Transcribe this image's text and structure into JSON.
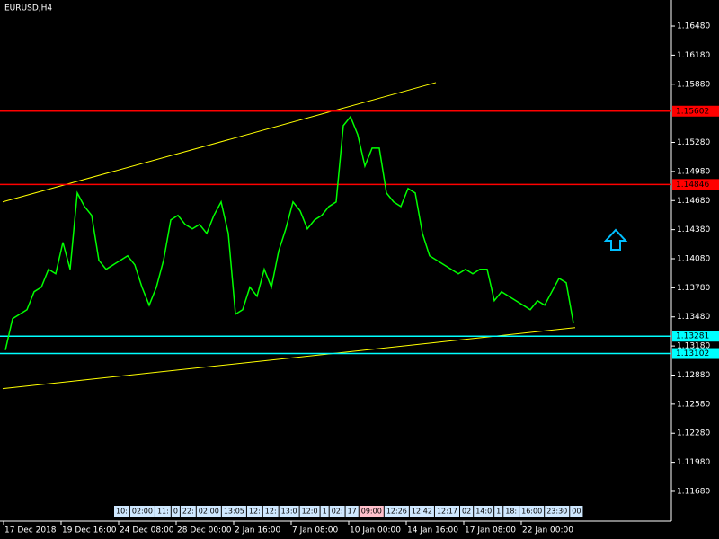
{
  "chart_data": {
    "type": "line",
    "title": "EURUSD,H4",
    "color": "#00ff00",
    "values": [
      1.13138,
      1.13462,
      1.13508,
      1.13554,
      1.1374,
      1.13786,
      1.13971,
      1.13925,
      1.14249,
      1.13971,
      1.14758,
      1.14619,
      1.14527,
      1.14064,
      1.13971,
      1.14017,
      1.14064,
      1.1411,
      1.14017,
      1.13786,
      1.13601,
      1.13786,
      1.14064,
      1.1448,
      1.14527,
      1.14434,
      1.14388,
      1.14434,
      1.14341,
      1.14527,
      1.14666,
      1.14341,
      1.13508,
      1.13554,
      1.13786,
      1.13693,
      1.13971,
      1.13786,
      1.14156,
      1.14388,
      1.14666,
      1.14573,
      1.14388,
      1.1448,
      1.14527,
      1.14619,
      1.14666,
      1.15453,
      1.15545,
      1.1536,
      1.15036,
      1.15221,
      1.15221,
      1.14758,
      1.14666,
      1.14619,
      1.14804,
      1.14758,
      1.14341,
      1.1411,
      1.14064,
      1.14017,
      1.13971,
      1.13925,
      1.13971,
      1.13925,
      1.13971,
      1.13971,
      1.13647,
      1.1374,
      1.13693,
      1.13647,
      1.13601,
      1.13554,
      1.13647,
      1.13601,
      1.1374,
      1.13878,
      1.13832,
      1.13415
    ],
    "x_labels": [
      "17 Dec 2018",
      "19 Dec 16:00",
      "24 Dec 08:00",
      "28 Dec 00:00",
      "2 Jan 16:00",
      "7 Jan 08:00",
      "10 Jan 00:00",
      "14 Jan 16:00",
      "17 Jan 08:00",
      "22 Jan 00:00"
    ],
    "ylim": [
      1.11374,
      1.16749
    ],
    "yticks": [
      {
        "value": 1.1648,
        "label": "1.16480"
      },
      {
        "value": 1.1618,
        "label": "1.16180"
      },
      {
        "value": 1.1588,
        "label": "1.15880"
      },
      {
        "value": 1.1528,
        "label": "1.15280"
      },
      {
        "value": 1.1498,
        "label": "1.14980"
      },
      {
        "value": 1.1468,
        "label": "1.14680"
      },
      {
        "value": 1.1438,
        "label": "1.14380"
      },
      {
        "value": 1.1408,
        "label": "1.14080"
      },
      {
        "value": 1.1378,
        "label": "1.13780"
      },
      {
        "value": 1.1348,
        "label": "1.13480"
      },
      {
        "value": 1.1318,
        "label": "1.13180"
      },
      {
        "value": 1.1288,
        "label": "1.12880"
      },
      {
        "value": 1.1258,
        "label": "1.12580"
      },
      {
        "value": 1.1228,
        "label": "1.12280"
      },
      {
        "value": 1.1198,
        "label": "1.11980"
      },
      {
        "value": 1.1168,
        "label": "1.11680"
      }
    ],
    "levels": [
      {
        "value": 1.15602,
        "color": "#ff0000"
      },
      {
        "value": 1.14846,
        "color": "#ff0000"
      },
      {
        "value": 1.13281,
        "color": "#00ffff"
      },
      {
        "value": 1.13102,
        "color": "#00ffff"
      }
    ],
    "trendlines": [
      {
        "from": 1.14666,
        "to": 1.15897,
        "color": "#ffff00"
      },
      {
        "from": 1.1274,
        "to": 1.13369,
        "color": "#ffff00"
      }
    ],
    "time_tags": [
      "10:",
      "02:00",
      "11:",
      "0",
      "22:",
      "02:00",
      "13:05",
      "12:",
      "12:",
      "13:0",
      "12:0",
      "1",
      "02:",
      "17",
      "09:00",
      "12:26",
      "12:42",
      "12:17",
      "02",
      "14:0",
      "1",
      "18:",
      "16:00",
      "23:30",
      "00"
    ]
  }
}
